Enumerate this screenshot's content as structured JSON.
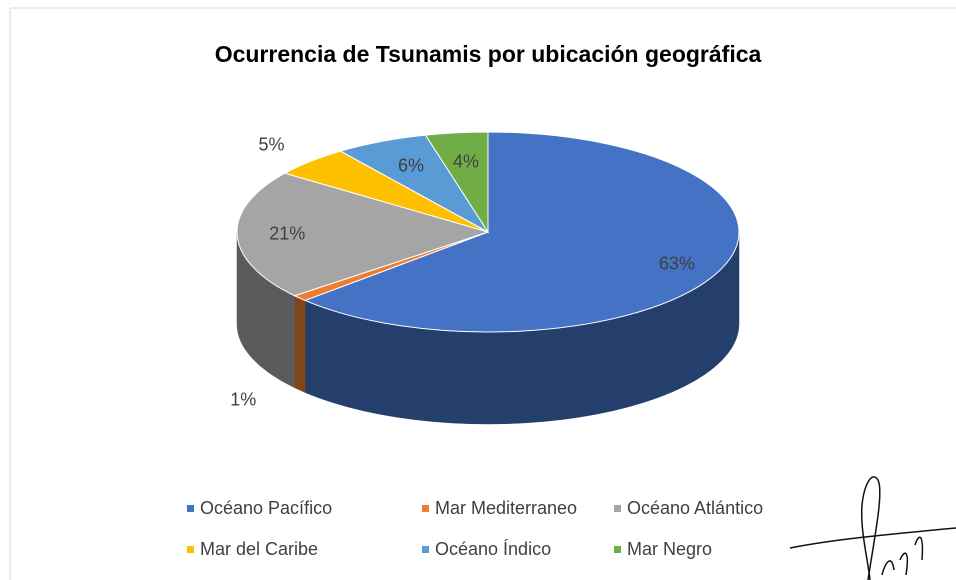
{
  "chart_data": {
    "type": "pie",
    "title": "Ocurrencia de Tsunamis por ubicación geográfica",
    "categories": [
      "Océano Pacífico",
      "Mar Mediterraneo",
      "Océano Atlántico",
      "Mar del Caribe",
      "Océano Índico",
      "Mar Negro"
    ],
    "values": [
      63,
      1,
      21,
      5,
      6,
      4
    ],
    "value_labels": [
      "63%",
      "1%",
      "21%",
      "5%",
      "6%",
      "4%"
    ],
    "colors": [
      "#4472c4",
      "#ed7d31",
      "#a5a5a5",
      "#ffc000",
      "#5b9bd5",
      "#70ad47"
    ],
    "legend": "bottom"
  }
}
